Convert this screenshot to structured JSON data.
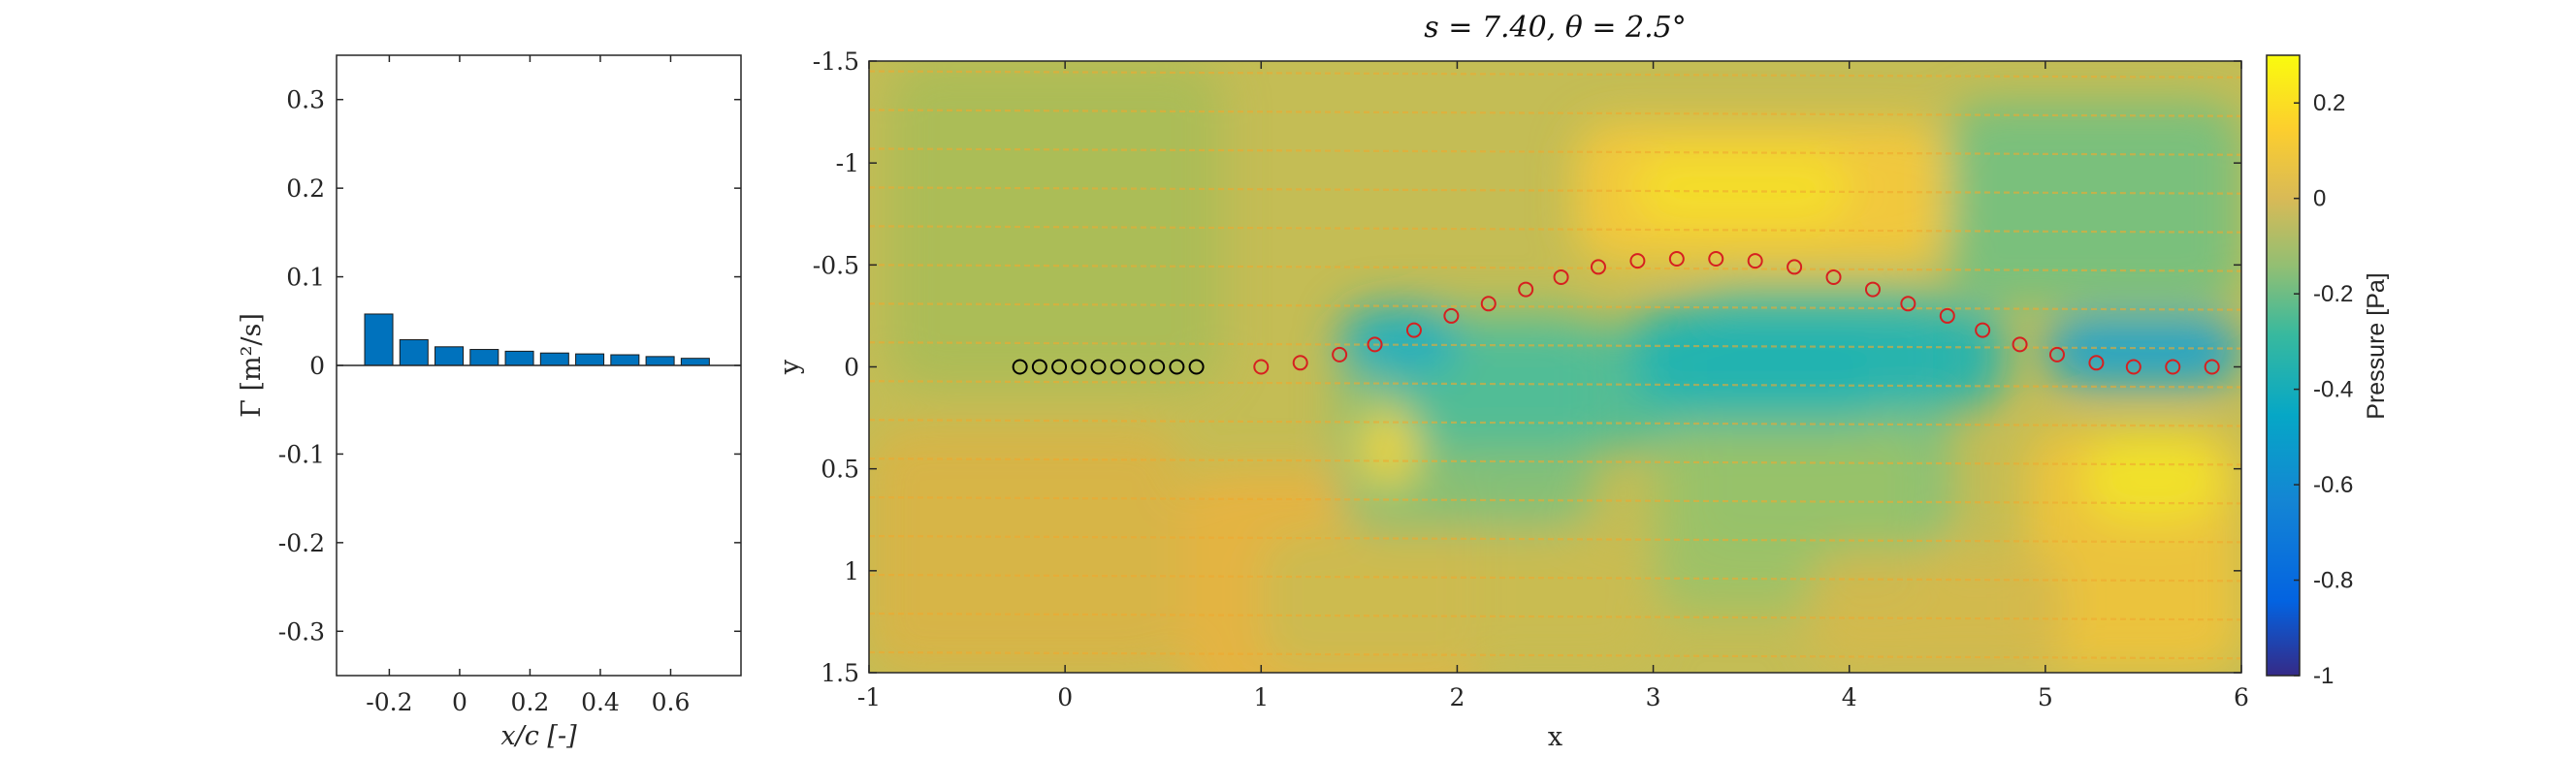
{
  "chart_data": [
    {
      "type": "bar",
      "xlabel": "x/c [-]",
      "ylabel": "Γ [m²/s]",
      "xlim": [
        -0.35,
        0.8
      ],
      "ylim": [
        -0.35,
        0.35
      ],
      "xticks": [
        "-0.2",
        "0",
        "0.2",
        "0.4",
        "0.6"
      ],
      "yticks": [
        "0.3",
        "0.2",
        "0.1",
        "0",
        "-0.1",
        "-0.2",
        "-0.3"
      ],
      "bar_color": "#0072BD",
      "x": [
        -0.23,
        -0.13,
        -0.03,
        0.07,
        0.17,
        0.27,
        0.37,
        0.47,
        0.57,
        0.67
      ],
      "values": [
        0.058,
        0.029,
        0.021,
        0.018,
        0.016,
        0.014,
        0.013,
        0.012,
        0.01,
        0.008
      ]
    },
    {
      "type": "heatmap",
      "title": "s = 7.40, θ = 2.5°",
      "xlabel": "x",
      "ylabel": "y",
      "xlim": [
        -1,
        6
      ],
      "ylim": [
        -1.5,
        1.5
      ],
      "y_reversed": true,
      "xticks": [
        "-1",
        "0",
        "1",
        "2",
        "3",
        "4",
        "5",
        "6"
      ],
      "yticks": [
        "-1.5",
        "-1",
        "-0.5",
        "0",
        "0.5",
        "1",
        "1.5"
      ],
      "colormap": "parula",
      "colorbar": {
        "label": "Pressure [Pa]",
        "range": [
          -1,
          0.3
        ],
        "ticks": [
          "0.2",
          "0",
          "-0.2",
          "-0.4",
          "-0.6",
          "-0.8",
          "-1"
        ]
      },
      "markers_black": {
        "x": [
          -0.23,
          -0.13,
          -0.03,
          0.07,
          0.17,
          0.27,
          0.37,
          0.47,
          0.57,
          0.67
        ],
        "y": [
          0,
          0,
          0,
          0,
          0,
          0,
          0,
          0,
          0,
          0
        ],
        "color": "#000000"
      },
      "markers_red": {
        "x": [
          1.0,
          1.2,
          1.4,
          1.58,
          1.78,
          1.97,
          2.16,
          2.35,
          2.53,
          2.72,
          2.92,
          3.12,
          3.32,
          3.52,
          3.72,
          3.92,
          4.12,
          4.3,
          4.5,
          4.68,
          4.87,
          5.06,
          5.26,
          5.45,
          5.65,
          5.85
        ],
        "y": [
          0.0,
          -0.02,
          -0.06,
          -0.11,
          -0.18,
          -0.25,
          -0.31,
          -0.38,
          -0.44,
          -0.49,
          -0.52,
          -0.53,
          -0.53,
          -0.52,
          -0.49,
          -0.44,
          -0.38,
          -0.31,
          -0.25,
          -0.18,
          -0.11,
          -0.06,
          -0.02,
          0.0,
          0.0,
          0.0
        ],
        "color": "#D62020"
      }
    }
  ]
}
